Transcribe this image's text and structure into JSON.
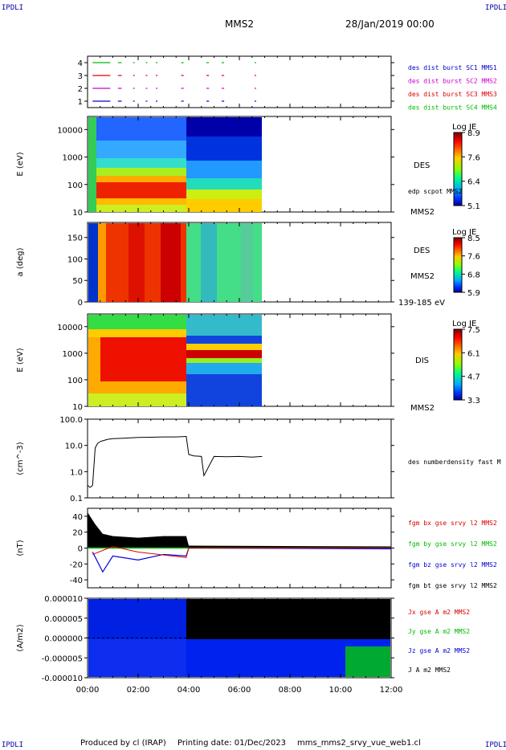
{
  "header": {
    "corner_tl": "IPDLI",
    "corner_tr": "IPDLI",
    "corner_bl": "IPDLI",
    "corner_br": "IPDLI",
    "title": "MMS2",
    "date": "28/Jan/2019 00:00"
  },
  "footer": {
    "produced_by": "Produced by cl (IRAP)",
    "printing_date": "Printing date: 01/Dec/2023",
    "file": "mms_mms2_srvy_vue_web1.cl"
  },
  "x_axis": {
    "ticks": [
      "00:00",
      "02:00",
      "04:00",
      "06:00",
      "08:00",
      "10:00",
      "12:00"
    ],
    "range_hours": [
      0,
      12
    ]
  },
  "colors": {
    "mms1": "#0000cc",
    "mms2": "#cc00cc",
    "mms3": "#dd0000",
    "mms4": "#00bb00",
    "bx": "#dd0000",
    "by": "#00bb00",
    "bz": "#0000dd",
    "bt": "#000000"
  },
  "chart_data": [
    {
      "type": "line",
      "panel": "burst",
      "yticks": [
        "4",
        "3",
        "2",
        "1"
      ],
      "ylim": [
        0.5,
        4.5
      ],
      "series": [
        {
          "name": "des dist burst SC1 MMS1",
          "level": 1
        },
        {
          "name": "des dist burst SC2 MMS2",
          "level": 2
        },
        {
          "name": "des dist burst SC3 MMS3",
          "level": 3
        },
        {
          "name": "des dist burst SC4 MMS4",
          "level": 4
        }
      ],
      "burst_intervals_hours": [
        [
          0.2,
          0.9
        ],
        [
          1.2,
          1.5
        ],
        [
          1.8,
          1.9
        ],
        [
          2.3,
          2.4
        ],
        [
          2.7,
          2.8
        ],
        [
          3.7,
          3.9
        ],
        [
          4.7,
          4.9
        ],
        [
          5.3,
          5.5
        ],
        [
          6.6,
          6.7
        ]
      ]
    },
    {
      "type": "heatmap",
      "panel": "des-energy",
      "ylabel": "E (eV)",
      "yscale": "log",
      "ylim": [
        10,
        30000
      ],
      "yticks": [
        "10000",
        "1000",
        "100",
        "10"
      ],
      "right_labels": [
        "DES",
        "edp scpot MMS2",
        "MMS2"
      ],
      "colorbar": {
        "title": "Log JE",
        "ticks": [
          "8.9",
          "7.6",
          "6.4",
          "5.1"
        ],
        "range": [
          5.1,
          8.9
        ]
      },
      "data_end_hours": 6.9
    },
    {
      "type": "heatmap",
      "panel": "des-pitch",
      "ylabel": "a (deg)",
      "ylim": [
        0,
        185
      ],
      "yticks": [
        "150",
        "100",
        "50",
        "0"
      ],
      "right_labels": [
        "DES",
        "MMS2",
        "139-185 eV"
      ],
      "colorbar": {
        "title": "Log JE",
        "ticks": [
          "8.5",
          "7.6",
          "6.8",
          "5.9"
        ],
        "range": [
          5.9,
          8.5
        ]
      },
      "data_end_hours": 6.9
    },
    {
      "type": "heatmap",
      "panel": "dis-energy",
      "ylabel": "E (eV)",
      "yscale": "log",
      "ylim": [
        10,
        30000
      ],
      "yticks": [
        "10000",
        "1000",
        "100",
        "10"
      ],
      "right_labels": [
        "DIS",
        "MMS2"
      ],
      "colorbar": {
        "title": "Log JE",
        "ticks": [
          "7.5",
          "6.1",
          "4.7",
          "3.3"
        ],
        "range": [
          3.3,
          7.5
        ]
      },
      "data_end_hours": 6.9
    },
    {
      "type": "line",
      "panel": "density",
      "ylabel": "(cm^-3)",
      "yscale": "log",
      "ylim": [
        0.1,
        100
      ],
      "yticks": [
        "100.0",
        "10.0",
        "1.0",
        "0.1"
      ],
      "series": [
        {
          "name": "des numberdensity fast M",
          "x": [
            0.0,
            0.1,
            0.2,
            0.3,
            0.4,
            0.5,
            0.6,
            0.8,
            1.0,
            1.5,
            2.0,
            2.5,
            3.0,
            3.5,
            3.9,
            4.0,
            4.2,
            4.5,
            4.6,
            5.0,
            5.5,
            6.0,
            6.5,
            6.9
          ],
          "y": [
            0.3,
            0.25,
            0.3,
            8.0,
            12.0,
            14.0,
            15.0,
            17.0,
            18.0,
            19.0,
            20.0,
            20.5,
            21.0,
            21.0,
            22.0,
            4.5,
            4.0,
            3.8,
            0.7,
            3.8,
            3.7,
            3.8,
            3.6,
            3.8
          ]
        }
      ]
    },
    {
      "type": "line",
      "panel": "bfield",
      "ylabel": "(nT)",
      "ylim": [
        -50,
        50
      ],
      "yticks": [
        "40",
        "20",
        "0",
        "-20",
        "-40"
      ],
      "series": [
        {
          "name": "fgm bx gse srvy l2 MMS2"
        },
        {
          "name": "fgm by gse srvy l2 MMS2"
        },
        {
          "name": "fgm bz gse srvy l2 MMS2"
        },
        {
          "name": "fgm bt gse srvy l2 MMS2"
        }
      ],
      "bt_envelope": {
        "x": [
          0.0,
          0.3,
          0.6,
          1.0,
          2.0,
          3.0,
          3.9,
          4.0,
          12.0
        ],
        "y": [
          45,
          30,
          18,
          15,
          13,
          15,
          15,
          3,
          2
        ]
      }
    },
    {
      "type": "area",
      "panel": "current",
      "ylabel": "(A/m2)",
      "ylim": [
        -1e-05,
        1e-05
      ],
      "yticks": [
        "0.000010",
        "0.000005",
        "0.000000",
        "-0.000005",
        "-0.000010"
      ],
      "series": [
        {
          "name": "Jx gse A m2 MMS2"
        },
        {
          "name": "Jy gse A m2 MMS2"
        },
        {
          "name": "Jz gse A m2 MMS2"
        },
        {
          "name": "J A m2 MMS2"
        }
      ]
    }
  ]
}
